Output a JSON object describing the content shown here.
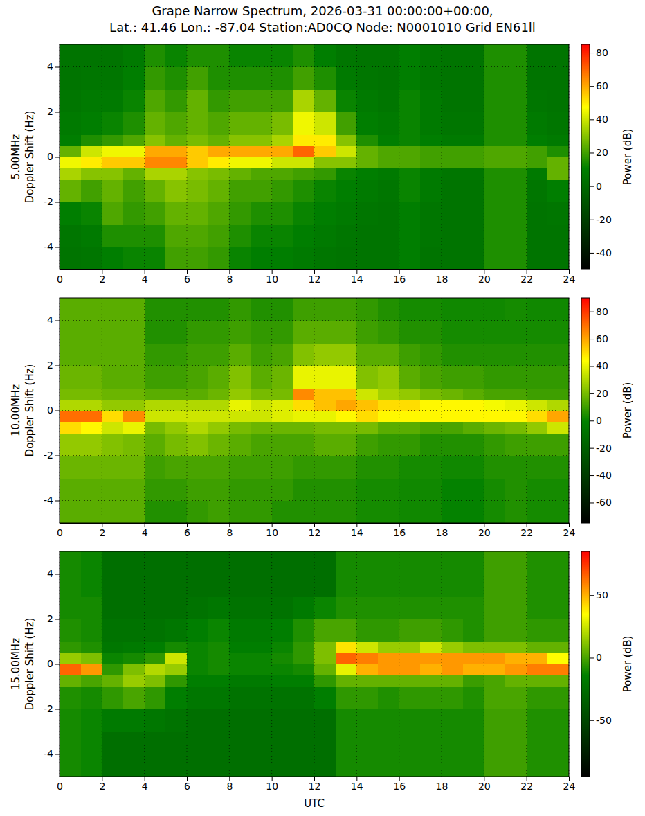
{
  "chart_data": [
    {
      "type": "heatmap",
      "title": [
        "Grape Narrow Spectrum, 2026-03-31 00:00:00+00:00,",
        "Lat.: 41.46 Lon.: -87.04 Station:AD0CQ Node: N0001010 Grid EN61ll"
      ],
      "ylabel": [
        "5.00MHz",
        "Doppler Shift (Hz)"
      ],
      "xlim": [
        0,
        24
      ],
      "xticks": [
        0,
        2,
        4,
        6,
        8,
        10,
        12,
        14,
        16,
        18,
        20,
        22,
        24
      ],
      "ylim": [
        -5,
        5
      ],
      "yticks": [
        -4,
        -2,
        0,
        2,
        4
      ],
      "grid": true,
      "x_edges": [
        0,
        1,
        2,
        3,
        4,
        5,
        6,
        7,
        8,
        9,
        10,
        11,
        12,
        13,
        14,
        15,
        16,
        17,
        18,
        19,
        20,
        21,
        22,
        23,
        24
      ],
      "y_edges": [
        -5,
        -4,
        -3,
        -2,
        -1,
        -0.5,
        0,
        0.5,
        1,
        2,
        3,
        4,
        5
      ],
      "z": [
        [
          5,
          6,
          10,
          12,
          12,
          20,
          20,
          18,
          12,
          10,
          10,
          8,
          6,
          5,
          5,
          5,
          10,
          5,
          5,
          5,
          15,
          15,
          5,
          5
        ],
        [
          6,
          8,
          15,
          15,
          15,
          22,
          22,
          20,
          15,
          12,
          12,
          10,
          8,
          6,
          5,
          5,
          10,
          6,
          5,
          5,
          15,
          15,
          5,
          5
        ],
        [
          10,
          12,
          22,
          18,
          20,
          25,
          25,
          22,
          18,
          15,
          15,
          12,
          10,
          8,
          6,
          5,
          10,
          6,
          5,
          5,
          15,
          15,
          5,
          6
        ],
        [
          25,
          20,
          25,
          20,
          25,
          30,
          28,
          25,
          20,
          20,
          18,
          15,
          12,
          10,
          8,
          6,
          12,
          8,
          5,
          5,
          15,
          15,
          6,
          10
        ],
        [
          35,
          30,
          30,
          25,
          35,
          35,
          30,
          28,
          25,
          22,
          22,
          20,
          18,
          12,
          10,
          8,
          12,
          8,
          6,
          6,
          15,
          15,
          8,
          25
        ],
        [
          45,
          50,
          55,
          55,
          65,
          65,
          55,
          50,
          45,
          45,
          40,
          40,
          30,
          30,
          25,
          22,
          22,
          20,
          20,
          20,
          22,
          22,
          20,
          25
        ],
        [
          25,
          40,
          45,
          45,
          60,
          60,
          55,
          60,
          60,
          60,
          60,
          70,
          55,
          40,
          25,
          22,
          22,
          20,
          20,
          20,
          22,
          22,
          20,
          15
        ],
        [
          10,
          15,
          18,
          22,
          30,
          25,
          28,
          25,
          30,
          30,
          35,
          50,
          50,
          30,
          15,
          10,
          12,
          10,
          8,
          8,
          15,
          15,
          10,
          8
        ],
        [
          8,
          10,
          12,
          15,
          25,
          22,
          25,
          22,
          25,
          25,
          28,
          45,
          40,
          20,
          10,
          8,
          12,
          8,
          6,
          6,
          15,
          15,
          8,
          6
        ],
        [
          6,
          8,
          8,
          12,
          22,
          18,
          25,
          18,
          20,
          20,
          20,
          35,
          25,
          12,
          8,
          6,
          12,
          8,
          5,
          5,
          15,
          15,
          6,
          5
        ],
        [
          5,
          6,
          6,
          10,
          18,
          15,
          20,
          15,
          15,
          15,
          15,
          20,
          15,
          8,
          6,
          5,
          10,
          6,
          5,
          5,
          15,
          15,
          5,
          5
        ],
        [
          5,
          5,
          5,
          8,
          15,
          12,
          15,
          15,
          12,
          12,
          12,
          15,
          10,
          6,
          5,
          5,
          10,
          6,
          5,
          5,
          15,
          15,
          5,
          5
        ]
      ],
      "colorbar": {
        "label": "Power (dB)",
        "range": [
          -50,
          85
        ],
        "ticks": [
          -40,
          -20,
          0,
          20,
          40,
          60,
          80
        ]
      }
    },
    {
      "type": "heatmap",
      "ylabel": [
        "10.00MHz",
        "Doppler Shift (Hz)"
      ],
      "xlim": [
        0,
        24
      ],
      "xticks": [
        0,
        2,
        4,
        6,
        8,
        10,
        12,
        14,
        16,
        18,
        20,
        22,
        24
      ],
      "ylim": [
        -5,
        5
      ],
      "yticks": [
        -4,
        -2,
        0,
        2,
        4
      ],
      "grid": true,
      "x_edges": [
        0,
        1,
        2,
        3,
        4,
        5,
        6,
        7,
        8,
        9,
        10,
        11,
        12,
        13,
        14,
        15,
        16,
        17,
        18,
        19,
        20,
        21,
        22,
        23,
        24
      ],
      "y_edges": [
        -5,
        -4,
        -3,
        -2,
        -1,
        -0.5,
        0,
        0.5,
        1,
        2,
        3,
        4,
        5
      ],
      "z": [
        [
          15,
          15,
          15,
          15,
          5,
          5,
          8,
          10,
          8,
          8,
          5,
          5,
          5,
          5,
          3,
          3,
          2,
          2,
          0,
          0,
          3,
          5,
          3,
          3
        ],
        [
          15,
          15,
          15,
          15,
          8,
          8,
          10,
          10,
          8,
          8,
          8,
          5,
          5,
          5,
          3,
          3,
          2,
          2,
          0,
          0,
          3,
          5,
          3,
          3
        ],
        [
          18,
          18,
          18,
          18,
          10,
          12,
          12,
          12,
          10,
          10,
          10,
          8,
          8,
          8,
          5,
          5,
          3,
          3,
          2,
          2,
          5,
          5,
          5,
          5
        ],
        [
          25,
          25,
          22,
          20,
          15,
          20,
          22,
          18,
          15,
          12,
          12,
          12,
          15,
          15,
          10,
          8,
          8,
          5,
          5,
          5,
          8,
          10,
          10,
          10
        ],
        [
          50,
          45,
          35,
          40,
          20,
          25,
          30,
          25,
          20,
          18,
          18,
          18,
          20,
          20,
          20,
          15,
          15,
          12,
          12,
          15,
          18,
          20,
          25,
          35
        ],
        [
          70,
          70,
          50,
          65,
          35,
          35,
          35,
          35,
          35,
          35,
          38,
          40,
          40,
          45,
          50,
          45,
          45,
          45,
          45,
          45,
          45,
          45,
          50,
          60
        ],
        [
          30,
          30,
          25,
          25,
          30,
          30,
          30,
          30,
          40,
          35,
          38,
          50,
          55,
          60,
          55,
          50,
          50,
          45,
          45,
          45,
          42,
          40,
          35,
          30
        ],
        [
          20,
          20,
          18,
          18,
          15,
          15,
          15,
          18,
          25,
          20,
          20,
          65,
          55,
          55,
          35,
          28,
          25,
          20,
          18,
          15,
          12,
          12,
          10,
          10
        ],
        [
          18,
          18,
          15,
          15,
          10,
          10,
          12,
          15,
          22,
          15,
          18,
          40,
          40,
          40,
          22,
          25,
          15,
          12,
          10,
          10,
          8,
          8,
          8,
          8
        ],
        [
          15,
          15,
          15,
          15,
          8,
          8,
          10,
          10,
          15,
          10,
          12,
          22,
          25,
          25,
          15,
          15,
          10,
          8,
          5,
          5,
          5,
          5,
          5,
          5
        ],
        [
          15,
          15,
          15,
          15,
          5,
          5,
          8,
          8,
          10,
          8,
          8,
          15,
          15,
          15,
          10,
          8,
          5,
          5,
          3,
          3,
          3,
          3,
          3,
          3
        ],
        [
          15,
          15,
          15,
          15,
          5,
          5,
          5,
          5,
          8,
          5,
          5,
          10,
          10,
          10,
          8,
          5,
          3,
          3,
          2,
          2,
          2,
          3,
          2,
          2
        ]
      ],
      "colorbar": {
        "label": "Power (dB)",
        "range": [
          -75,
          90
        ],
        "ticks": [
          -60,
          -40,
          -20,
          0,
          20,
          40,
          60,
          80
        ]
      }
    },
    {
      "type": "heatmap",
      "ylabel": [
        "15.00MHz",
        "Doppler Shift (Hz)"
      ],
      "xlabel": "UTC",
      "xlim": [
        0,
        24
      ],
      "xticks": [
        0,
        2,
        4,
        6,
        8,
        10,
        12,
        14,
        16,
        18,
        20,
        22,
        24
      ],
      "ylim": [
        -5,
        5
      ],
      "yticks": [
        -4,
        -2,
        0,
        2,
        4
      ],
      "grid": true,
      "x_edges": [
        0,
        1,
        2,
        3,
        4,
        5,
        6,
        7,
        8,
        9,
        10,
        11,
        12,
        13,
        14,
        15,
        16,
        17,
        18,
        19,
        20,
        21,
        22,
        23,
        24
      ],
      "y_edges": [
        -5,
        -4,
        -3,
        -2,
        -1,
        -0.5,
        0,
        0.5,
        1,
        2,
        3,
        4,
        5
      ],
      "z": [
        [
          -10,
          -12,
          -25,
          -25,
          -25,
          -25,
          -25,
          -25,
          -25,
          -25,
          -25,
          -25,
          -25,
          -10,
          -10,
          -10,
          -10,
          -10,
          -10,
          -10,
          -2,
          -2,
          -8,
          -8
        ],
        [
          -10,
          -12,
          -25,
          -25,
          -25,
          -25,
          -25,
          -25,
          -25,
          -25,
          -25,
          -25,
          -25,
          -10,
          -10,
          -10,
          -10,
          -10,
          -10,
          -10,
          -2,
          -2,
          -8,
          -8
        ],
        [
          -10,
          -12,
          -18,
          -18,
          -20,
          -22,
          -25,
          -25,
          -25,
          -25,
          -25,
          -25,
          -25,
          -10,
          -10,
          -10,
          -10,
          -10,
          -10,
          -10,
          -2,
          -2,
          -8,
          -8
        ],
        [
          -8,
          -10,
          -5,
          0,
          -5,
          -15,
          -20,
          -20,
          -22,
          -22,
          -22,
          -22,
          -15,
          -5,
          -5,
          -8,
          -5,
          -5,
          -5,
          -8,
          0,
          0,
          -5,
          -5
        ],
        [
          5,
          0,
          5,
          15,
          10,
          -5,
          -15,
          -15,
          -18,
          -18,
          -15,
          -15,
          -5,
          5,
          5,
          5,
          5,
          5,
          5,
          -3,
          0,
          5,
          5,
          5
        ],
        [
          65,
          55,
          -5,
          10,
          20,
          15,
          -12,
          -10,
          -12,
          -12,
          -12,
          -10,
          5,
          30,
          50,
          55,
          55,
          50,
          55,
          50,
          50,
          55,
          60,
          60
        ],
        [
          15,
          10,
          -12,
          -10,
          -5,
          25,
          -12,
          -10,
          -12,
          -12,
          -10,
          -5,
          10,
          65,
          60,
          55,
          55,
          55,
          55,
          55,
          55,
          50,
          50,
          35
        ],
        [
          -5,
          -8,
          -20,
          -18,
          -15,
          -10,
          -12,
          -10,
          -15,
          -15,
          -12,
          -5,
          10,
          40,
          25,
          15,
          15,
          25,
          15,
          10,
          10,
          10,
          5,
          5
        ],
        [
          -8,
          -10,
          -22,
          -22,
          -22,
          -20,
          -15,
          -12,
          -18,
          -18,
          -15,
          -8,
          0,
          0,
          -5,
          -5,
          -2,
          -2,
          -5,
          -8,
          -2,
          -2,
          -5,
          -5
        ],
        [
          -10,
          -10,
          -25,
          -25,
          -25,
          -25,
          -22,
          -20,
          -22,
          -22,
          -22,
          -18,
          -12,
          -8,
          -8,
          -8,
          -8,
          -8,
          -8,
          -8,
          -2,
          -2,
          -8,
          -8
        ],
        [
          -10,
          -12,
          -25,
          -25,
          -25,
          -25,
          -25,
          -25,
          -25,
          -25,
          -25,
          -25,
          -25,
          -10,
          -10,
          -10,
          -10,
          -10,
          -10,
          -10,
          -2,
          -2,
          -8,
          -8
        ],
        [
          -10,
          -12,
          -25,
          -25,
          -25,
          -25,
          -25,
          -25,
          -25,
          -25,
          -25,
          -25,
          -25,
          -10,
          -10,
          -10,
          -10,
          -10,
          -10,
          -10,
          -2,
          -2,
          -8,
          -8
        ]
      ],
      "colorbar": {
        "label": "Power (dB)",
        "range": [
          -95,
          85
        ],
        "ticks": [
          -50,
          0,
          50
        ]
      }
    }
  ]
}
